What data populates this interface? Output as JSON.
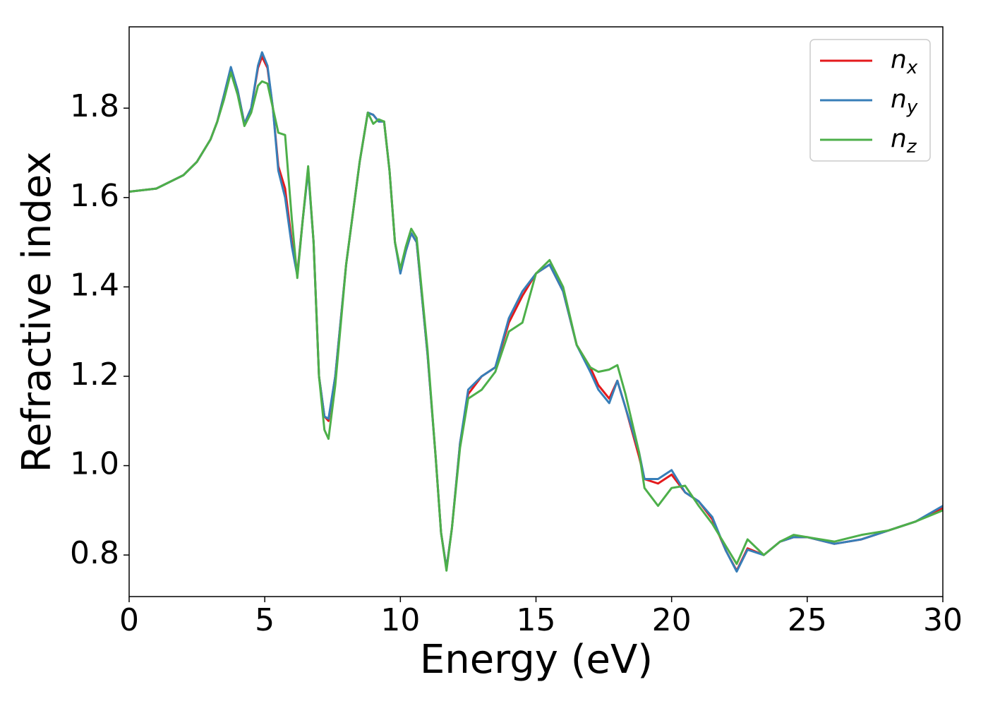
{
  "chart_data": {
    "type": "line",
    "xlabel": "Energy (eV)",
    "ylabel": "Refractive index",
    "x": [
      0,
      1,
      2,
      2.5,
      3,
      3.25,
      3.5,
      3.75,
      4,
      4.25,
      4.5,
      4.75,
      4.9,
      5.1,
      5.3,
      5.5,
      5.75,
      6,
      6.2,
      6.4,
      6.6,
      6.8,
      7,
      7.2,
      7.35,
      7.6,
      8,
      8.5,
      8.8,
      9,
      9.2,
      9.4,
      9.6,
      9.8,
      10,
      10.2,
      10.4,
      10.6,
      11,
      11.3,
      11.5,
      11.7,
      11.9,
      12.2,
      12.5,
      13,
      13.5,
      14,
      14.5,
      15,
      15.5,
      16,
      16.5,
      17,
      17.3,
      17.7,
      18,
      18.3,
      18.8,
      19,
      19.5,
      20,
      20.5,
      21,
      21.5,
      22,
      22.4,
      22.8,
      23.4,
      24,
      24.5,
      25,
      26,
      27,
      28,
      29,
      30
    ],
    "series": [
      {
        "name": "nx",
        "color": "#e41a1c",
        "values": [
          1.613,
          1.62,
          1.65,
          1.68,
          1.73,
          1.77,
          1.83,
          1.89,
          1.84,
          1.765,
          1.8,
          1.89,
          1.915,
          1.89,
          1.8,
          1.67,
          1.62,
          1.5,
          1.43,
          1.55,
          1.665,
          1.5,
          1.2,
          1.11,
          1.1,
          1.2,
          1.45,
          1.68,
          1.79,
          1.785,
          1.77,
          1.77,
          1.66,
          1.5,
          1.435,
          1.48,
          1.52,
          1.5,
          1.25,
          1.02,
          0.85,
          0.77,
          0.86,
          1.05,
          1.16,
          1.2,
          1.22,
          1.32,
          1.38,
          1.43,
          1.45,
          1.39,
          1.27,
          1.22,
          1.18,
          1.15,
          1.19,
          1.13,
          1.02,
          0.97,
          0.96,
          0.98,
          0.94,
          0.92,
          0.88,
          0.81,
          0.765,
          0.815,
          0.8,
          0.83,
          0.84,
          0.84,
          0.825,
          0.835,
          0.855,
          0.875,
          0.905
        ]
      },
      {
        "name": "ny",
        "color": "#377eb8",
        "values": [
          1.613,
          1.62,
          1.65,
          1.68,
          1.73,
          1.77,
          1.83,
          1.892,
          1.84,
          1.765,
          1.8,
          1.895,
          1.925,
          1.895,
          1.8,
          1.66,
          1.6,
          1.49,
          1.425,
          1.55,
          1.66,
          1.5,
          1.2,
          1.11,
          1.105,
          1.2,
          1.45,
          1.68,
          1.79,
          1.785,
          1.77,
          1.77,
          1.66,
          1.5,
          1.43,
          1.48,
          1.52,
          1.5,
          1.25,
          1.02,
          0.85,
          0.77,
          0.86,
          1.05,
          1.17,
          1.2,
          1.22,
          1.33,
          1.39,
          1.43,
          1.45,
          1.39,
          1.27,
          1.21,
          1.17,
          1.14,
          1.19,
          1.13,
          1.03,
          0.97,
          0.97,
          0.99,
          0.94,
          0.92,
          0.885,
          0.81,
          0.763,
          0.812,
          0.8,
          0.83,
          0.84,
          0.84,
          0.825,
          0.835,
          0.855,
          0.875,
          0.91
        ]
      },
      {
        "name": "nz",
        "color": "#4daf4a",
        "values": [
          1.613,
          1.62,
          1.65,
          1.68,
          1.73,
          1.77,
          1.82,
          1.88,
          1.83,
          1.76,
          1.79,
          1.85,
          1.86,
          1.855,
          1.8,
          1.745,
          1.74,
          1.55,
          1.42,
          1.55,
          1.67,
          1.5,
          1.2,
          1.08,
          1.06,
          1.18,
          1.45,
          1.68,
          1.79,
          1.765,
          1.775,
          1.77,
          1.66,
          1.5,
          1.44,
          1.49,
          1.53,
          1.51,
          1.26,
          1.02,
          0.85,
          0.765,
          0.86,
          1.04,
          1.15,
          1.17,
          1.21,
          1.3,
          1.32,
          1.43,
          1.46,
          1.4,
          1.27,
          1.22,
          1.21,
          1.215,
          1.225,
          1.16,
          1.03,
          0.95,
          0.91,
          0.95,
          0.955,
          0.91,
          0.87,
          0.82,
          0.78,
          0.835,
          0.8,
          0.83,
          0.845,
          0.84,
          0.83,
          0.845,
          0.855,
          0.875,
          0.9
        ]
      }
    ],
    "xlim": [
      0,
      30
    ],
    "xticks": [
      0,
      5,
      10,
      15,
      20,
      25,
      30
    ],
    "ylim": [
      0.707,
      1.982
    ],
    "yticks": [
      0.8,
      1.0,
      1.2,
      1.4,
      1.6,
      1.8
    ],
    "legend": "upper right",
    "grid": false
  }
}
